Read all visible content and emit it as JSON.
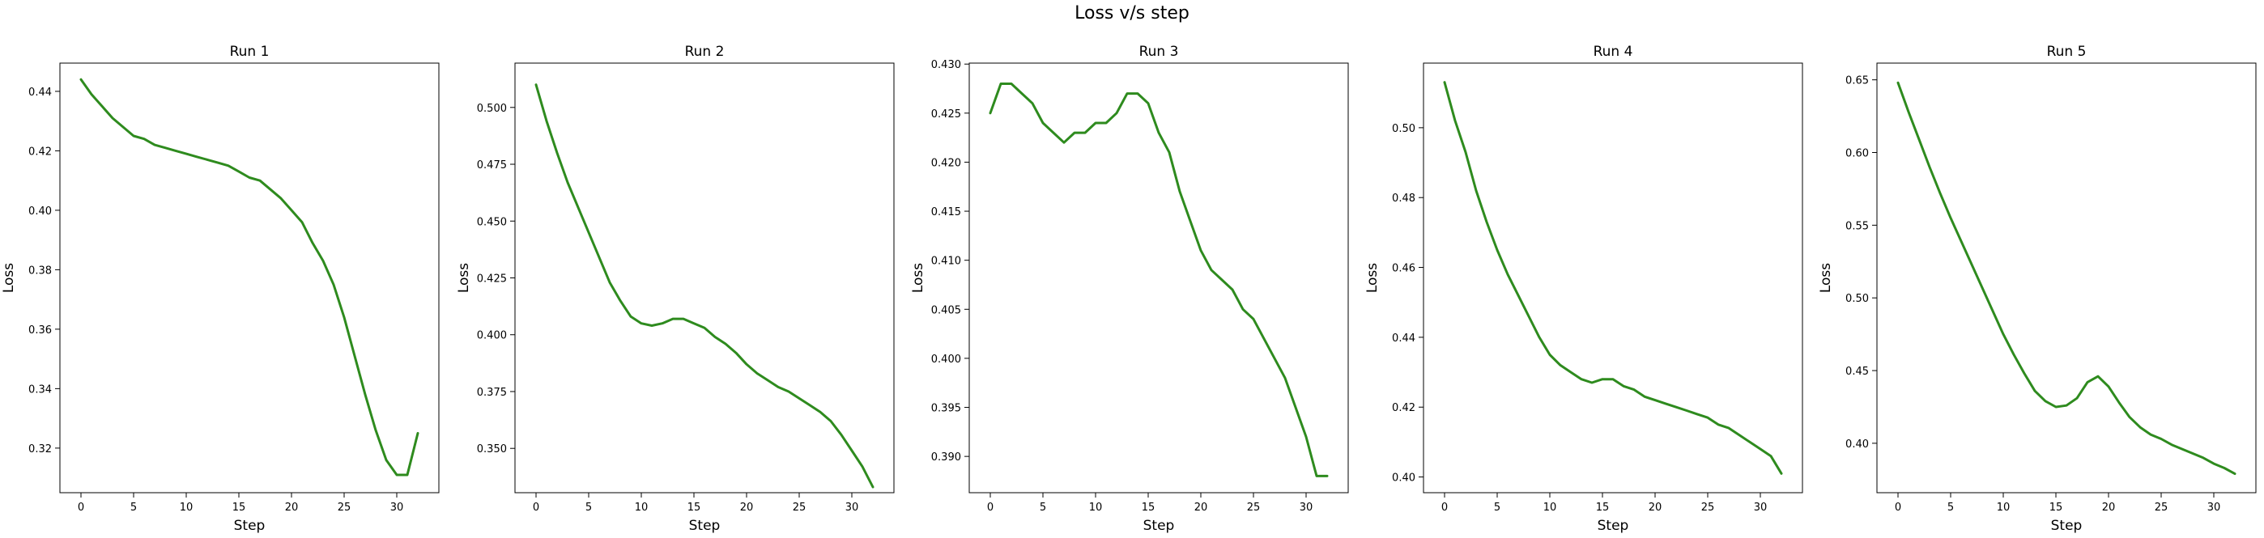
{
  "figure": {
    "title": "Loss v/s step"
  },
  "colors": {
    "line": "#2e8b1e"
  },
  "chart_data": [
    {
      "type": "line",
      "title": "Run 1",
      "xlabel": "Step",
      "ylabel": "Loss",
      "xlim": [
        -2,
        34
      ],
      "ylim": [
        0.305,
        0.4495
      ],
      "xticks": [
        0,
        5,
        10,
        15,
        20,
        25,
        30
      ],
      "yticks": [
        0.32,
        0.34,
        0.36,
        0.38,
        0.4,
        0.42,
        0.44
      ],
      "ytick_labels": [
        "0.32",
        "0.34",
        "0.36",
        "0.38",
        "0.40",
        "0.42",
        "0.44"
      ],
      "x": [
        0,
        1,
        2,
        3,
        4,
        5,
        6,
        7,
        8,
        9,
        10,
        11,
        12,
        13,
        14,
        15,
        16,
        17,
        18,
        19,
        20,
        21,
        22,
        23,
        24,
        25,
        26,
        27,
        28,
        29,
        30,
        31,
        32
      ],
      "y": [
        0.444,
        0.439,
        0.435,
        0.431,
        0.428,
        0.425,
        0.424,
        0.422,
        0.421,
        0.42,
        0.419,
        0.418,
        0.417,
        0.416,
        0.415,
        0.413,
        0.411,
        0.41,
        0.407,
        0.404,
        0.4,
        0.396,
        0.389,
        0.383,
        0.375,
        0.364,
        0.351,
        0.338,
        0.326,
        0.316,
        0.311,
        0.311,
        0.325
      ]
    },
    {
      "type": "line",
      "title": "Run 2",
      "xlabel": "Step",
      "ylabel": "Loss",
      "xlim": [
        -2,
        34
      ],
      "ylim": [
        0.3305,
        0.5195
      ],
      "xticks": [
        0,
        5,
        10,
        15,
        20,
        25,
        30
      ],
      "yticks": [
        0.35,
        0.375,
        0.4,
        0.425,
        0.45,
        0.475,
        0.5
      ],
      "ytick_labels": [
        "0.350",
        "0.375",
        "0.400",
        "0.425",
        "0.450",
        "0.475",
        "0.500"
      ],
      "x": [
        0,
        1,
        2,
        3,
        4,
        5,
        6,
        7,
        8,
        9,
        10,
        11,
        12,
        13,
        14,
        15,
        16,
        17,
        18,
        19,
        20,
        21,
        22,
        23,
        24,
        25,
        26,
        27,
        28,
        29,
        30,
        31,
        32
      ],
      "y": [
        0.51,
        0.494,
        0.48,
        0.467,
        0.456,
        0.445,
        0.434,
        0.423,
        0.415,
        0.408,
        0.405,
        0.404,
        0.405,
        0.407,
        0.407,
        0.405,
        0.403,
        0.399,
        0.396,
        0.392,
        0.387,
        0.383,
        0.38,
        0.377,
        0.375,
        0.372,
        0.369,
        0.366,
        0.362,
        0.356,
        0.349,
        0.342,
        0.333
      ]
    },
    {
      "type": "line",
      "title": "Run 3",
      "xlabel": "Step",
      "ylabel": "Loss",
      "xlim": [
        -2,
        34
      ],
      "ylim": [
        0.3863,
        0.4301
      ],
      "xticks": [
        0,
        5,
        10,
        15,
        20,
        25,
        30
      ],
      "yticks": [
        0.39,
        0.395,
        0.4,
        0.405,
        0.41,
        0.415,
        0.42,
        0.425,
        0.43
      ],
      "ytick_labels": [
        "0.390",
        "0.395",
        "0.400",
        "0.405",
        "0.410",
        "0.415",
        "0.420",
        "0.425",
        "0.430"
      ],
      "x": [
        0,
        1,
        2,
        3,
        4,
        5,
        6,
        7,
        8,
        9,
        10,
        11,
        12,
        13,
        14,
        15,
        16,
        17,
        18,
        19,
        20,
        21,
        22,
        23,
        24,
        25,
        26,
        27,
        28,
        29,
        30,
        31,
        32
      ],
      "y": [
        0.425,
        0.428,
        0.428,
        0.427,
        0.426,
        0.424,
        0.423,
        0.422,
        0.423,
        0.423,
        0.424,
        0.424,
        0.425,
        0.427,
        0.427,
        0.426,
        0.423,
        0.421,
        0.417,
        0.414,
        0.411,
        0.409,
        0.408,
        0.407,
        0.405,
        0.404,
        0.402,
        0.4,
        0.398,
        0.395,
        0.392,
        0.388,
        0.388
      ]
    },
    {
      "type": "line",
      "title": "Run 4",
      "xlabel": "Step",
      "ylabel": "Loss",
      "xlim": [
        -2,
        34
      ],
      "ylim": [
        0.3955,
        0.5185
      ],
      "xticks": [
        0,
        5,
        10,
        15,
        20,
        25,
        30
      ],
      "yticks": [
        0.4,
        0.42,
        0.44,
        0.46,
        0.48,
        0.5
      ],
      "ytick_labels": [
        "0.40",
        "0.42",
        "0.44",
        "0.46",
        "0.48",
        "0.50"
      ],
      "x": [
        0,
        1,
        2,
        3,
        4,
        5,
        6,
        7,
        8,
        9,
        10,
        11,
        12,
        13,
        14,
        15,
        16,
        17,
        18,
        19,
        20,
        21,
        22,
        23,
        24,
        25,
        26,
        27,
        28,
        29,
        30,
        31,
        32
      ],
      "y": [
        0.513,
        0.502,
        0.493,
        0.482,
        0.473,
        0.465,
        0.458,
        0.452,
        0.446,
        0.44,
        0.435,
        0.432,
        0.43,
        0.428,
        0.427,
        0.428,
        0.428,
        0.426,
        0.425,
        0.423,
        0.422,
        0.421,
        0.42,
        0.419,
        0.418,
        0.417,
        0.415,
        0.414,
        0.412,
        0.41,
        0.408,
        0.406,
        0.401
      ]
    },
    {
      "type": "line",
      "title": "Run 5",
      "xlabel": "Step",
      "ylabel": "Loss",
      "xlim": [
        -2,
        34
      ],
      "ylim": [
        0.366,
        0.6615
      ],
      "xticks": [
        0,
        5,
        10,
        15,
        20,
        25,
        30
      ],
      "yticks": [
        0.4,
        0.45,
        0.5,
        0.55,
        0.6,
        0.65
      ],
      "ytick_labels": [
        "0.40",
        "0.45",
        "0.50",
        "0.55",
        "0.60",
        "0.65"
      ],
      "x": [
        0,
        1,
        2,
        3,
        4,
        5,
        6,
        7,
        8,
        9,
        10,
        11,
        12,
        13,
        14,
        15,
        16,
        17,
        18,
        19,
        20,
        21,
        22,
        23,
        24,
        25,
        26,
        27,
        28,
        29,
        30,
        31,
        32
      ],
      "y": [
        0.648,
        0.628,
        0.609,
        0.59,
        0.572,
        0.555,
        0.539,
        0.523,
        0.507,
        0.491,
        0.475,
        0.461,
        0.448,
        0.436,
        0.429,
        0.425,
        0.426,
        0.431,
        0.442,
        0.446,
        0.439,
        0.428,
        0.418,
        0.411,
        0.406,
        0.403,
        0.399,
        0.396,
        0.393,
        0.39,
        0.386,
        0.383,
        0.379
      ]
    }
  ]
}
